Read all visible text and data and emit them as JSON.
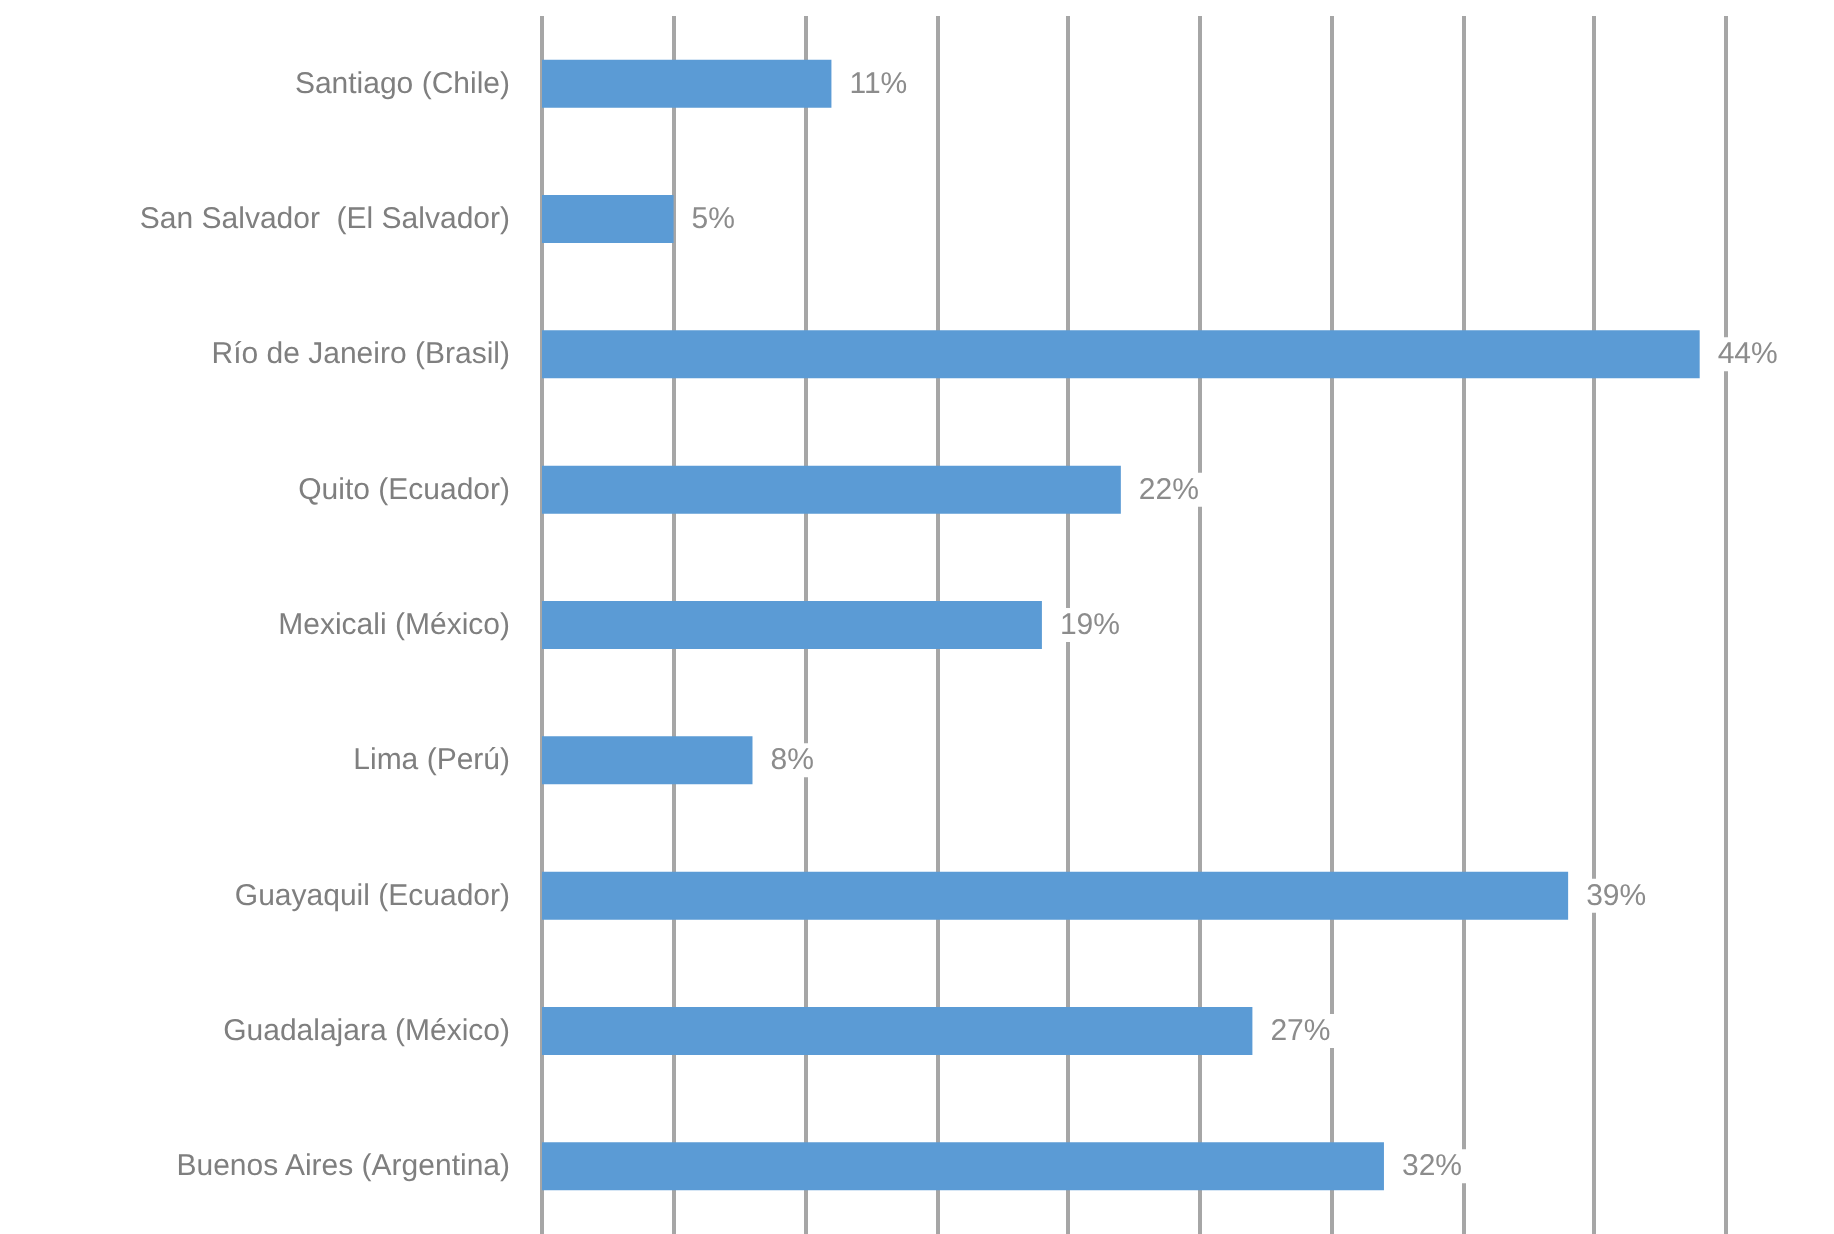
{
  "chart_data": {
    "type": "bar",
    "orientation": "horizontal",
    "categories": [
      "Santiago (Chile)",
      "San Salvador  (El Salvador)",
      "Río de Janeiro (Brasil)",
      "Quito (Ecuador)",
      "Mexicali (México)",
      "Lima (Perú)",
      "Guayaquil (Ecuador)",
      "Guadalajara (México)",
      "Buenos Aires (Argentina)"
    ],
    "values": [
      11,
      5,
      44,
      22,
      19,
      8,
      39,
      27,
      32
    ],
    "value_labels": [
      "11%",
      "5%",
      "44%",
      "22%",
      "19%",
      "8%",
      "39%",
      "27%",
      "32%"
    ],
    "color": "#5b9bd5",
    "xlim": [
      0,
      45
    ],
    "xticks": [
      {
        "value": 0,
        "label": null
      },
      {
        "value": 5,
        "label": null
      },
      {
        "value": 10,
        "label": null
      },
      {
        "value": 15,
        "label": null
      },
      {
        "value": 20,
        "label": null
      },
      {
        "value": 25,
        "label": null
      },
      {
        "value": 30,
        "label": null
      },
      {
        "value": 35,
        "label": null
      },
      {
        "value": 40,
        "label": null
      },
      {
        "value": 45,
        "label": null
      }
    ],
    "grid": "x",
    "tick_labels": "y"
  }
}
